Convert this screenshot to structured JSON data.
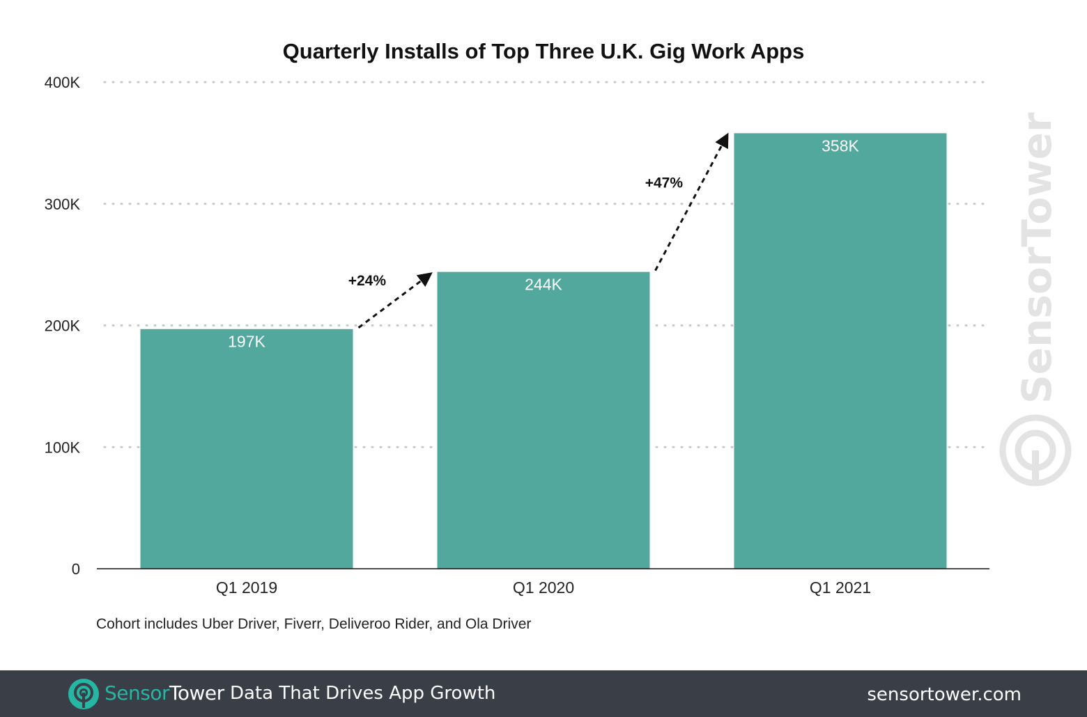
{
  "chart_data": {
    "type": "bar",
    "title": "Quarterly Installs of Top Three U.K. Gig Work Apps",
    "categories": [
      "Q1 2019",
      "Q1 2020",
      "Q1 2021"
    ],
    "values": [
      197000,
      244000,
      358000
    ],
    "value_labels": [
      "197K",
      "244K",
      "358K"
    ],
    "ylim": [
      0,
      400000
    ],
    "yticks": [
      0,
      100000,
      200000,
      300000,
      400000
    ],
    "ytick_labels": [
      "0",
      "100K",
      "200K",
      "300K",
      "400K"
    ],
    "xlabel": "",
    "ylabel": "",
    "grid": true,
    "bar_color": "#52a89d",
    "annotations": [
      {
        "text": "+24%",
        "from": "Q1 2019",
        "to": "Q1 2020"
      },
      {
        "text": "+47%",
        "from": "Q1 2020",
        "to": "Q1 2021"
      }
    ],
    "note": "Cohort includes Uber Driver, Fiverr, Deliveroo Rider, and Ola Driver"
  },
  "watermark": {
    "text": "SensorTower",
    "color": "#e3e3e3"
  },
  "footer": {
    "brand_part1": "Sensor",
    "brand_part2": "Tower",
    "tagline": "Data That Drives App Growth",
    "url": "sensortower.com",
    "background": "#3a3e47",
    "accent": "#26b6a4",
    "logo_icon": "sensortower-logo-icon"
  }
}
